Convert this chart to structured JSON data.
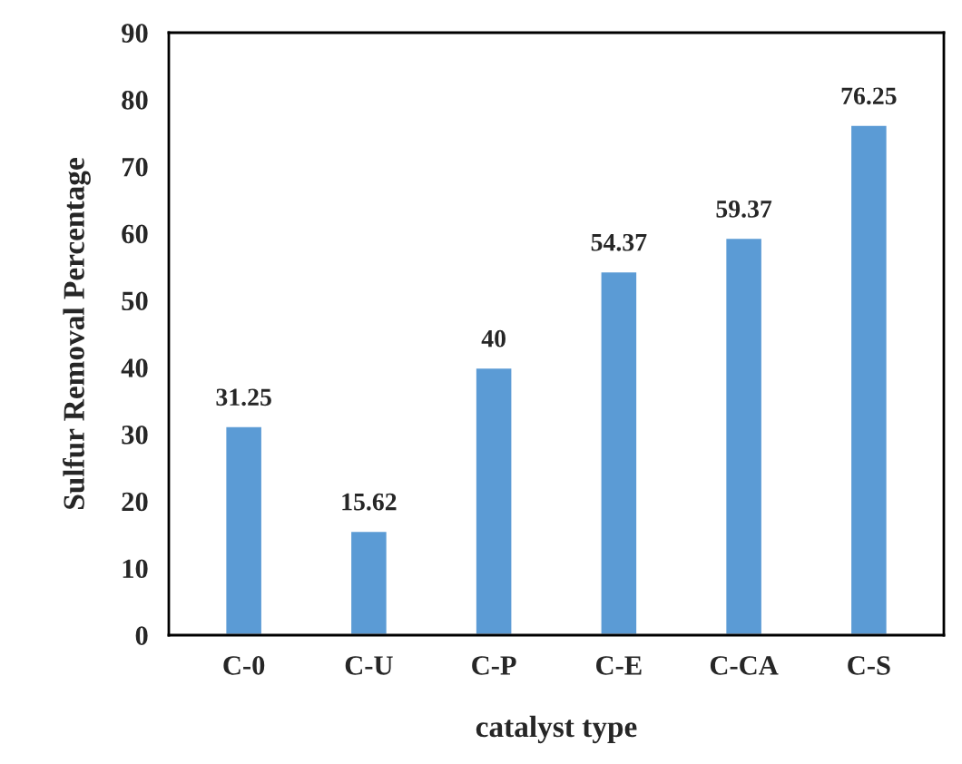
{
  "chart_data": {
    "type": "bar",
    "xlabel": "catalyst type",
    "ylabel": "Sulfur Removal Percentage",
    "categories": [
      "C-0",
      "C-U",
      "C-P",
      "C-E",
      "C-CA",
      "C-S"
    ],
    "values": [
      31.25,
      15.62,
      40,
      54.37,
      59.37,
      76.25
    ],
    "value_labels": [
      "31.25",
      "15.62",
      "40",
      "54.37",
      "59.37",
      "76.25"
    ],
    "color": "#5b9bd5",
    "ylim": [
      0,
      90
    ],
    "yticks": [
      0,
      10,
      20,
      30,
      40,
      50,
      60,
      70,
      80,
      90
    ],
    "grid": false
  }
}
